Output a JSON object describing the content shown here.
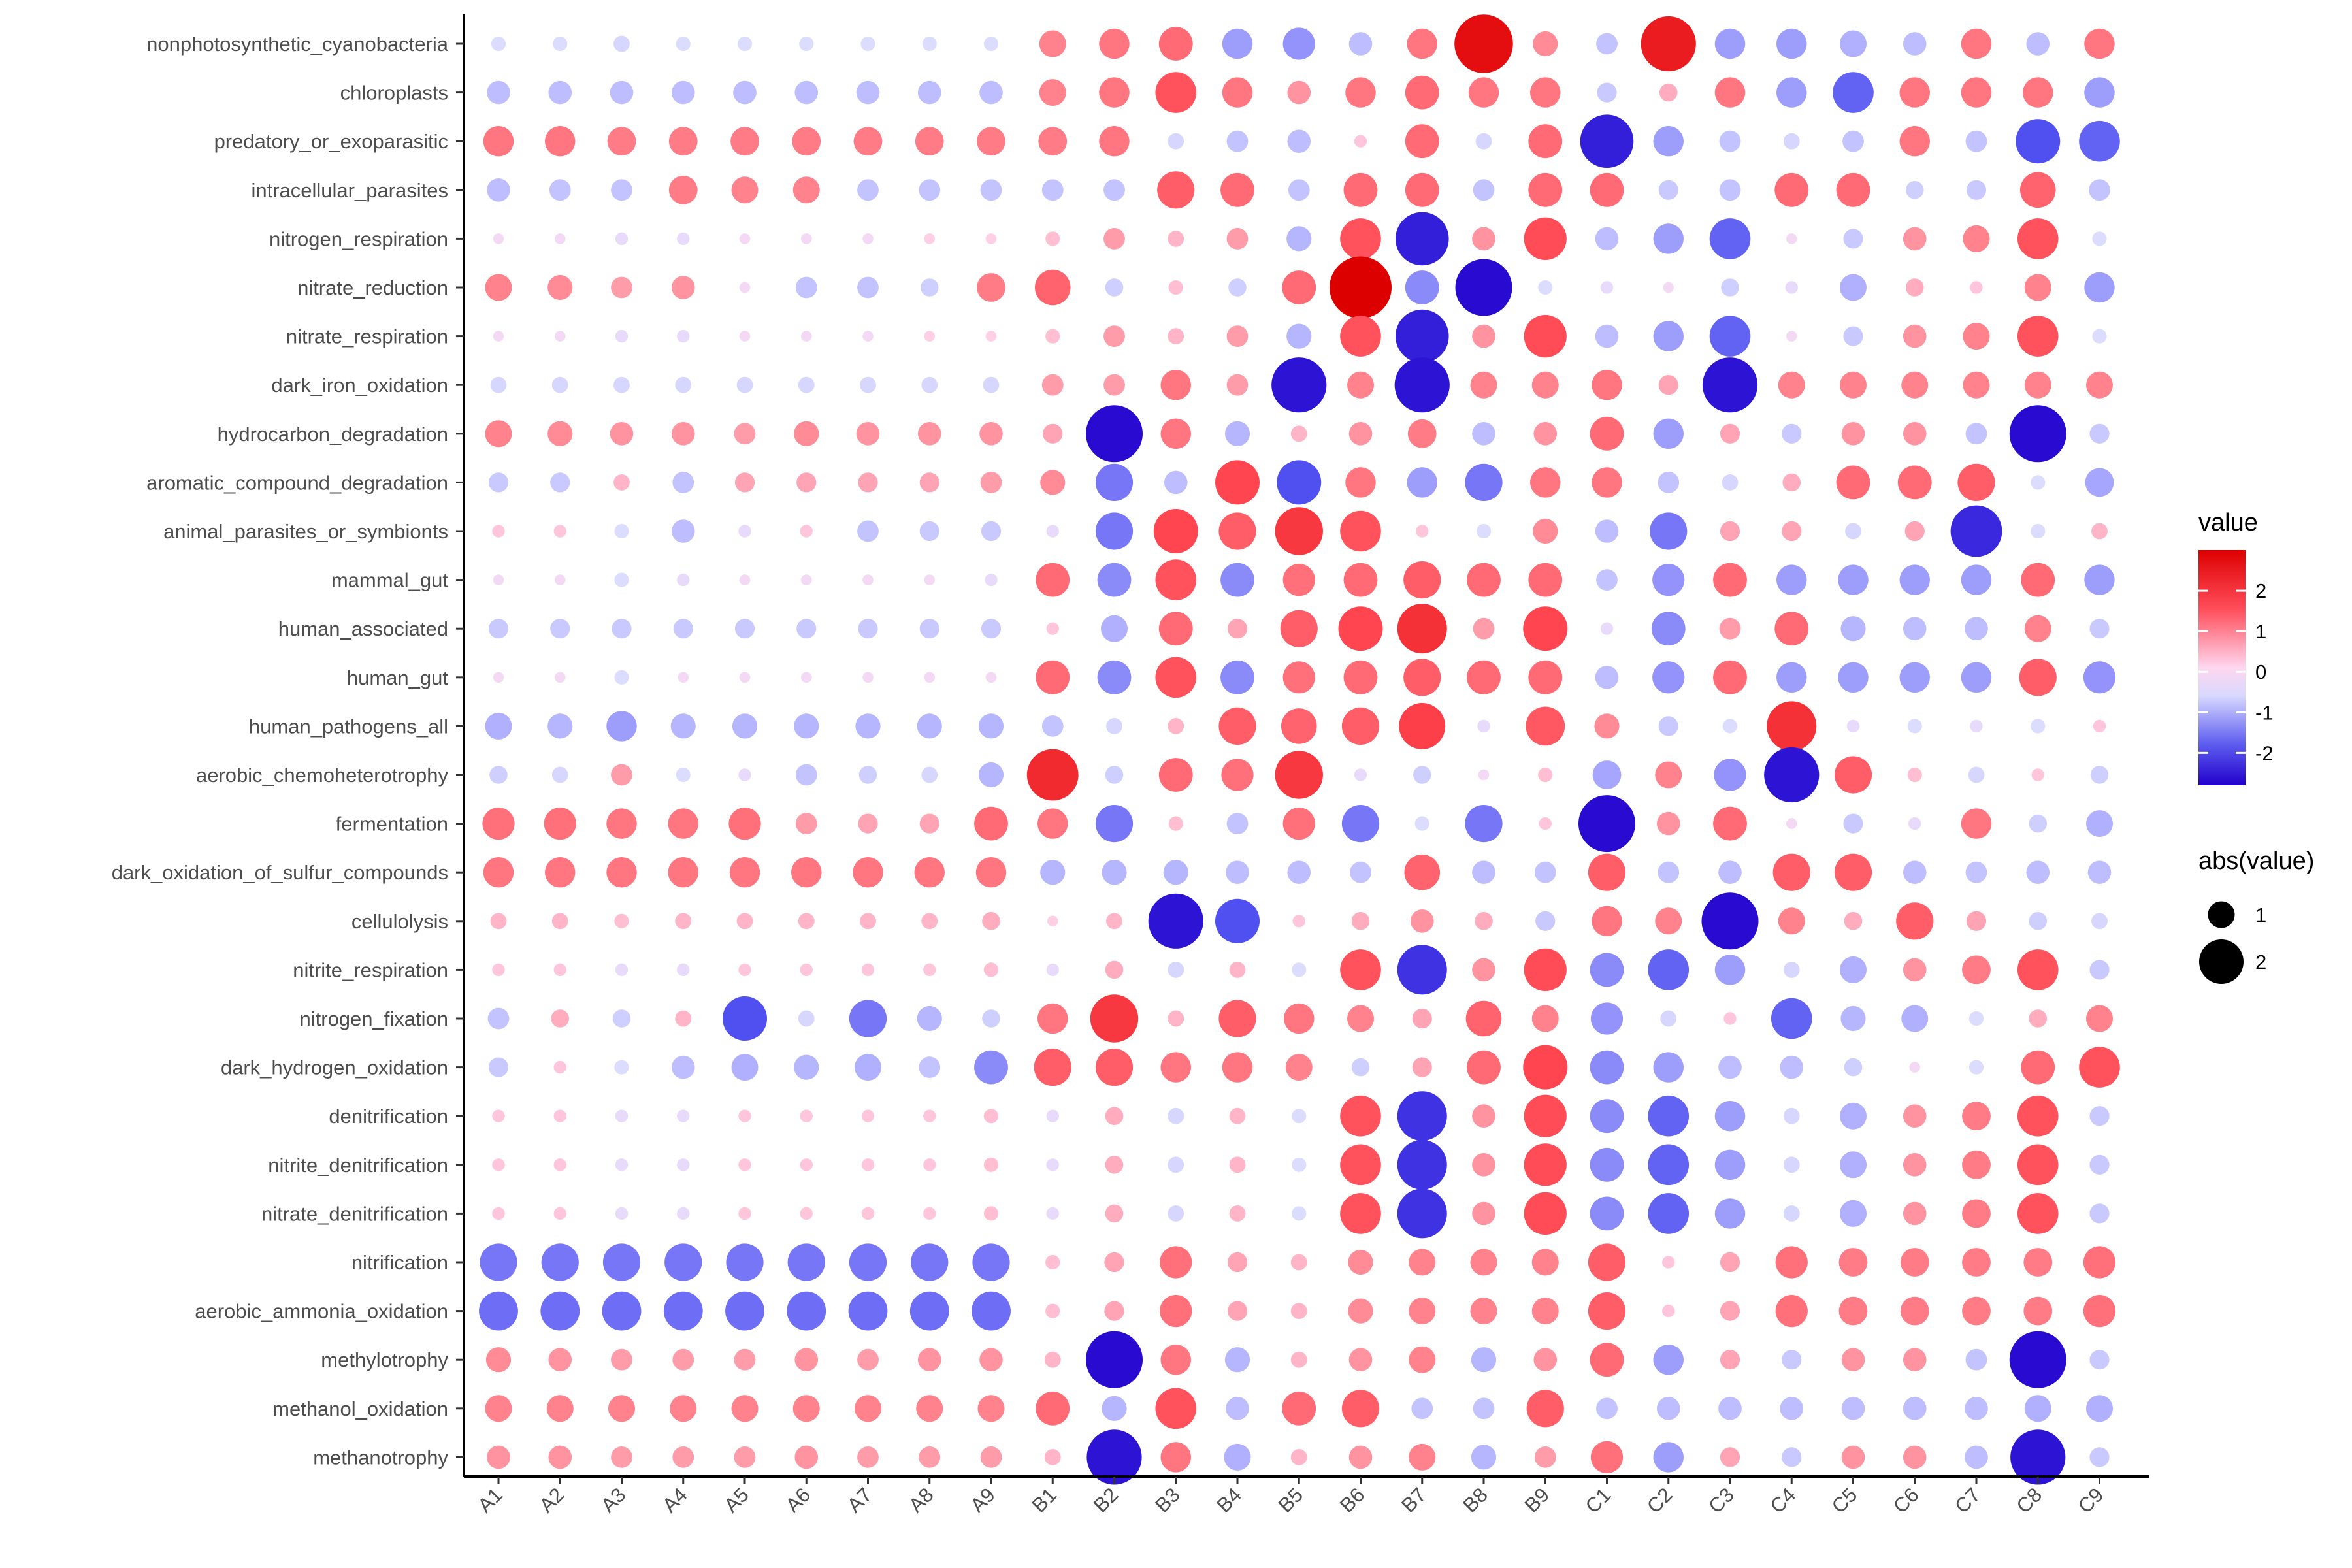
{
  "chart_data": {
    "type": "scatter",
    "title": "",
    "xlabel": "",
    "ylabel": "",
    "x": [
      "A1",
      "A2",
      "A3",
      "A4",
      "A5",
      "A6",
      "A7",
      "A8",
      "A9",
      "B1",
      "B2",
      "B3",
      "B4",
      "B5",
      "B6",
      "B7",
      "B8",
      "B9",
      "C1",
      "C2",
      "C3",
      "C4",
      "C5",
      "C6",
      "C7",
      "C8",
      "C9"
    ],
    "y": [
      "nonphotosynthetic_cyanobacteria",
      "chloroplasts",
      "predatory_or_exoparasitic",
      "intracellular_parasites",
      "nitrogen_respiration",
      "nitrate_reduction",
      "nitrate_respiration",
      "dark_iron_oxidation",
      "hydrocarbon_degradation",
      "aromatic_compound_degradation",
      "animal_parasites_or_symbionts",
      "mammal_gut",
      "human_associated",
      "human_gut",
      "human_pathogens_all",
      "aerobic_chemoheterotrophy",
      "fermentation",
      "dark_oxidation_of_sulfur_compounds",
      "cellulolysis",
      "nitrite_respiration",
      "nitrogen_fixation",
      "dark_hydrogen_oxidation",
      "denitrification",
      "nitrite_denitrification",
      "nitrate_denitrification",
      "nitrification",
      "aerobic_ammonia_oxidation",
      "methylotrophy",
      "methanol_oxidation",
      "methanotrophy"
    ],
    "values": [
      [
        -0.3,
        -0.3,
        -0.4,
        -0.3,
        -0.3,
        -0.3,
        -0.3,
        -0.3,
        -0.3,
        1.0,
        1.2,
        1.4,
        -1.2,
        -1.3,
        -0.8,
        1.2,
        2.8,
        0.9,
        -0.7,
        2.6,
        -1.2,
        -1.2,
        -1.0,
        -0.8,
        1.2,
        -0.8,
        1.2
      ],
      [
        -0.8,
        -0.8,
        -0.8,
        -0.8,
        -0.8,
        -0.8,
        -0.8,
        -0.8,
        -0.8,
        1.0,
        1.2,
        1.8,
        1.2,
        0.8,
        1.2,
        1.4,
        1.2,
        1.2,
        -0.6,
        0.5,
        1.2,
        -1.2,
        -1.8,
        1.2,
        1.2,
        1.2,
        -1.2
      ],
      [
        1.2,
        1.2,
        1.1,
        1.1,
        1.1,
        1.1,
        1.1,
        1.1,
        1.1,
        1.1,
        1.2,
        -0.4,
        -0.7,
        -0.8,
        0.2,
        1.4,
        -0.4,
        1.4,
        -2.5,
        -1.2,
        -0.7,
        -0.4,
        -0.7,
        1.2,
        -0.7,
        -2.0,
        -1.8
      ],
      [
        -0.8,
        -0.7,
        -0.7,
        1.1,
        1.0,
        1.0,
        -0.7,
        -0.7,
        -0.7,
        -0.7,
        -0.7,
        1.6,
        1.4,
        -0.7,
        1.4,
        1.4,
        -0.7,
        1.4,
        1.4,
        -0.6,
        -0.7,
        1.4,
        1.4,
        -0.5,
        -0.6,
        1.5,
        -0.7
      ],
      [
        -0.1,
        -0.1,
        -0.2,
        -0.2,
        -0.1,
        -0.1,
        -0.1,
        0.1,
        0.1,
        0.3,
        0.7,
        0.4,
        0.7,
        -0.9,
        1.8,
        -2.5,
        0.8,
        1.9,
        -0.8,
        -1.2,
        -1.8,
        -0.1,
        -0.6,
        0.8,
        1.0,
        1.8,
        -0.3
      ],
      [
        1.0,
        0.9,
        0.7,
        0.8,
        -0.1,
        -0.7,
        -0.7,
        -0.5,
        1.1,
        1.5,
        -0.5,
        0.3,
        -0.5,
        1.4,
        3.0,
        -1.4,
        -2.7,
        -0.3,
        -0.2,
        -0.1,
        -0.5,
        -0.2,
        -1.0,
        0.5,
        0.2,
        1.0,
        -1.2
      ],
      [
        -0.1,
        -0.1,
        -0.2,
        -0.2,
        -0.1,
        -0.1,
        -0.1,
        0.1,
        0.1,
        0.3,
        0.7,
        0.4,
        0.7,
        -0.9,
        1.8,
        -2.5,
        0.8,
        1.9,
        -0.8,
        -1.2,
        -1.8,
        -0.1,
        -0.6,
        0.8,
        1.0,
        1.8,
        -0.3
      ],
      [
        -0.4,
        -0.4,
        -0.4,
        -0.4,
        -0.4,
        -0.4,
        -0.4,
        -0.4,
        -0.4,
        0.7,
        0.7,
        1.2,
        0.7,
        -2.6,
        1.0,
        -2.6,
        1.0,
        1.0,
        1.2,
        0.6,
        -2.6,
        1.0,
        1.0,
        1.0,
        1.0,
        1.0,
        1.0
      ],
      [
        1.0,
        0.9,
        0.8,
        0.8,
        0.7,
        0.9,
        0.8,
        0.8,
        0.8,
        0.6,
        -2.7,
        1.2,
        -0.9,
        0.4,
        0.8,
        1.1,
        -0.8,
        0.8,
        1.4,
        -1.2,
        0.6,
        -0.6,
        0.8,
        0.8,
        -0.7,
        -2.7,
        -0.6
      ],
      [
        -0.6,
        -0.6,
        0.4,
        -0.7,
        0.6,
        0.6,
        0.6,
        0.6,
        0.7,
        0.9,
        -1.6,
        -0.8,
        2.0,
        -2.0,
        1.2,
        -1.2,
        -1.6,
        1.2,
        1.2,
        -0.7,
        -0.4,
        0.5,
        1.4,
        1.4,
        1.6,
        -0.3,
        -1.1
      ],
      [
        0.2,
        0.2,
        -0.3,
        -0.8,
        -0.2,
        0.2,
        -0.7,
        -0.6,
        -0.6,
        -0.2,
        -1.6,
        2.0,
        1.6,
        2.2,
        1.8,
        0.2,
        -0.3,
        0.9,
        -0.8,
        -1.6,
        0.6,
        0.6,
        -0.4,
        0.6,
        -2.4,
        -0.3,
        0.4
      ],
      [
        -0.1,
        -0.1,
        -0.3,
        -0.2,
        -0.1,
        -0.1,
        -0.1,
        -0.1,
        -0.2,
        1.4,
        -1.4,
        1.8,
        -1.4,
        1.3,
        1.4,
        1.6,
        1.4,
        1.4,
        -0.7,
        -1.3,
        1.4,
        -1.2,
        -1.2,
        -1.2,
        -1.2,
        1.4,
        -1.2
      ],
      [
        -0.6,
        -0.6,
        -0.6,
        -0.6,
        -0.6,
        -0.6,
        -0.6,
        -0.6,
        -0.6,
        0.2,
        -1.0,
        1.4,
        0.6,
        1.6,
        2.0,
        2.3,
        0.7,
        2.0,
        -0.2,
        -1.4,
        0.7,
        1.4,
        -0.9,
        -0.8,
        -0.8,
        1.0,
        -0.6
      ],
      [
        -0.1,
        -0.1,
        -0.3,
        -0.1,
        -0.1,
        -0.1,
        -0.1,
        -0.1,
        -0.1,
        1.4,
        -1.4,
        1.8,
        -1.4,
        1.3,
        1.4,
        1.6,
        1.4,
        1.4,
        -0.8,
        -1.3,
        1.4,
        -1.2,
        -1.2,
        -1.2,
        -1.2,
        1.6,
        -1.3
      ],
      [
        -1.0,
        -0.9,
        -1.2,
        -0.9,
        -0.9,
        -0.9,
        -0.9,
        -0.9,
        -0.9,
        -0.7,
        -0.4,
        0.4,
        1.6,
        1.5,
        1.6,
        2.1,
        -0.2,
        1.7,
        0.9,
        -0.6,
        -0.3,
        2.3,
        -0.2,
        -0.3,
        -0.2,
        -0.3,
        0.2
      ],
      [
        -0.5,
        -0.4,
        0.7,
        -0.3,
        -0.2,
        -0.7,
        -0.5,
        -0.4,
        -0.9,
        2.4,
        -0.5,
        1.4,
        1.3,
        2.2,
        -0.2,
        -0.5,
        -0.1,
        0.3,
        -1.1,
        1.0,
        -1.3,
        -2.6,
        1.6,
        0.3,
        -0.4,
        0.2,
        -0.5
      ],
      [
        1.3,
        1.3,
        1.2,
        1.2,
        1.3,
        0.7,
        0.6,
        0.6,
        1.4,
        1.2,
        -1.6,
        0.3,
        -0.7,
        1.3,
        -1.6,
        -0.3,
        -1.6,
        0.2,
        -2.7,
        0.8,
        1.4,
        -0.1,
        -0.6,
        -0.2,
        1.2,
        -0.5,
        -1.0
      ],
      [
        1.2,
        1.2,
        1.2,
        1.2,
        1.2,
        1.2,
        1.2,
        1.2,
        1.2,
        -0.9,
        -0.9,
        -0.9,
        -0.8,
        -0.8,
        -0.7,
        1.5,
        -0.8,
        -0.7,
        1.6,
        -0.7,
        -0.8,
        1.6,
        1.6,
        -0.8,
        -0.7,
        -0.8,
        -0.8
      ],
      [
        0.4,
        0.4,
        0.3,
        0.4,
        0.4,
        0.4,
        0.4,
        0.4,
        0.5,
        0.1,
        0.4,
        -2.6,
        -2.0,
        0.2,
        0.5,
        0.8,
        0.5,
        -0.6,
        1.2,
        1.0,
        -2.7,
        1.0,
        0.5,
        1.6,
        0.6,
        -0.5,
        -0.4
      ],
      [
        0.2,
        0.2,
        -0.2,
        -0.2,
        0.2,
        0.2,
        0.2,
        0.2,
        0.3,
        -0.2,
        0.5,
        -0.4,
        0.4,
        -0.3,
        1.8,
        -2.3,
        0.8,
        1.9,
        -1.4,
        -1.8,
        -1.2,
        -0.4,
        -1.0,
        0.8,
        1.1,
        1.8,
        -0.6
      ],
      [
        -0.7,
        0.5,
        -0.5,
        0.4,
        -2.0,
        -0.4,
        -1.6,
        -0.9,
        -0.5,
        1.2,
        2.2,
        0.4,
        1.6,
        1.2,
        1.0,
        0.6,
        1.5,
        1.0,
        -1.3,
        -0.4,
        0.2,
        -1.8,
        -0.9,
        -1.0,
        -0.3,
        0.5,
        1.0
      ],
      [
        -0.6,
        0.2,
        -0.3,
        -0.8,
        -1.0,
        -0.9,
        -1.0,
        -0.7,
        -1.4,
        1.6,
        1.6,
        1.2,
        1.2,
        1.0,
        -0.5,
        0.6,
        1.4,
        2.0,
        -1.4,
        -1.2,
        -0.8,
        -0.8,
        -0.5,
        -0.1,
        -0.3,
        1.4,
        1.8
      ],
      [
        0.2,
        0.2,
        -0.2,
        -0.2,
        0.2,
        0.2,
        0.2,
        0.2,
        0.3,
        -0.2,
        0.5,
        -0.4,
        0.4,
        -0.3,
        1.8,
        -2.3,
        0.8,
        1.9,
        -1.4,
        -1.8,
        -1.2,
        -0.4,
        -1.0,
        0.8,
        1.1,
        1.8,
        -0.6
      ],
      [
        0.2,
        0.2,
        -0.2,
        -0.2,
        0.2,
        0.2,
        0.2,
        0.2,
        0.3,
        -0.2,
        0.5,
        -0.4,
        0.4,
        -0.3,
        1.8,
        -2.3,
        0.8,
        1.9,
        -1.4,
        -1.8,
        -1.2,
        -0.4,
        -1.0,
        0.8,
        1.1,
        1.8,
        -0.6
      ],
      [
        0.2,
        0.2,
        -0.2,
        -0.2,
        0.2,
        0.2,
        0.2,
        0.2,
        0.3,
        -0.2,
        0.5,
        -0.4,
        0.4,
        -0.3,
        1.8,
        -2.3,
        0.8,
        1.9,
        -1.4,
        -1.8,
        -1.2,
        -0.4,
        -1.0,
        0.8,
        1.1,
        1.8,
        -0.6
      ],
      [
        -1.6,
        -1.6,
        -1.6,
        -1.6,
        -1.6,
        -1.6,
        -1.6,
        -1.6,
        -1.6,
        0.3,
        0.6,
        1.3,
        0.6,
        0.4,
        0.9,
        1.0,
        1.0,
        1.0,
        1.6,
        0.2,
        0.6,
        1.3,
        1.1,
        1.1,
        1.1,
        1.1,
        1.3
      ],
      [
        -1.7,
        -1.7,
        -1.7,
        -1.7,
        -1.7,
        -1.7,
        -1.7,
        -1.7,
        -1.7,
        0.3,
        0.6,
        1.3,
        0.6,
        0.4,
        0.9,
        1.0,
        1.0,
        1.0,
        1.6,
        0.2,
        0.6,
        1.3,
        1.1,
        1.1,
        1.1,
        1.1,
        1.3
      ],
      [
        0.9,
        0.8,
        0.7,
        0.7,
        0.7,
        0.8,
        0.7,
        0.8,
        0.8,
        0.4,
        -2.7,
        1.2,
        -0.9,
        0.4,
        0.8,
        1.0,
        -0.9,
        0.8,
        1.4,
        -1.2,
        0.6,
        -0.6,
        0.8,
        0.8,
        -0.7,
        -2.7,
        -0.6
      ],
      [
        1.0,
        1.0,
        1.0,
        1.0,
        1.0,
        1.0,
        1.0,
        1.0,
        1.0,
        1.4,
        -0.9,
        1.8,
        -0.8,
        1.4,
        1.6,
        -0.7,
        -0.7,
        1.6,
        -0.7,
        -0.8,
        -0.8,
        -0.8,
        -0.8,
        -0.8,
        -0.8,
        -1.0,
        -1.0
      ],
      [
        0.8,
        0.8,
        0.7,
        0.7,
        0.7,
        0.8,
        0.7,
        0.7,
        0.7,
        0.4,
        -2.6,
        1.2,
        -1.0,
        0.4,
        0.8,
        1.0,
        -0.9,
        0.7,
        1.3,
        -1.2,
        0.6,
        -0.6,
        0.8,
        0.8,
        -0.8,
        -2.6,
        -0.6
      ]
    ],
    "color_legend": {
      "title": "value",
      "ticks": [
        2,
        1,
        0,
        -1,
        -2
      ],
      "range": [
        -2.8,
        3.0
      ]
    },
    "size_legend": {
      "title": "abs(value)",
      "ticks": [
        1,
        2
      ]
    },
    "colors": {
      "low": "#2200cc",
      "mid": "#e8e8ff",
      "high": "#dd0000"
    },
    "grid": false,
    "legend_position": "right"
  }
}
